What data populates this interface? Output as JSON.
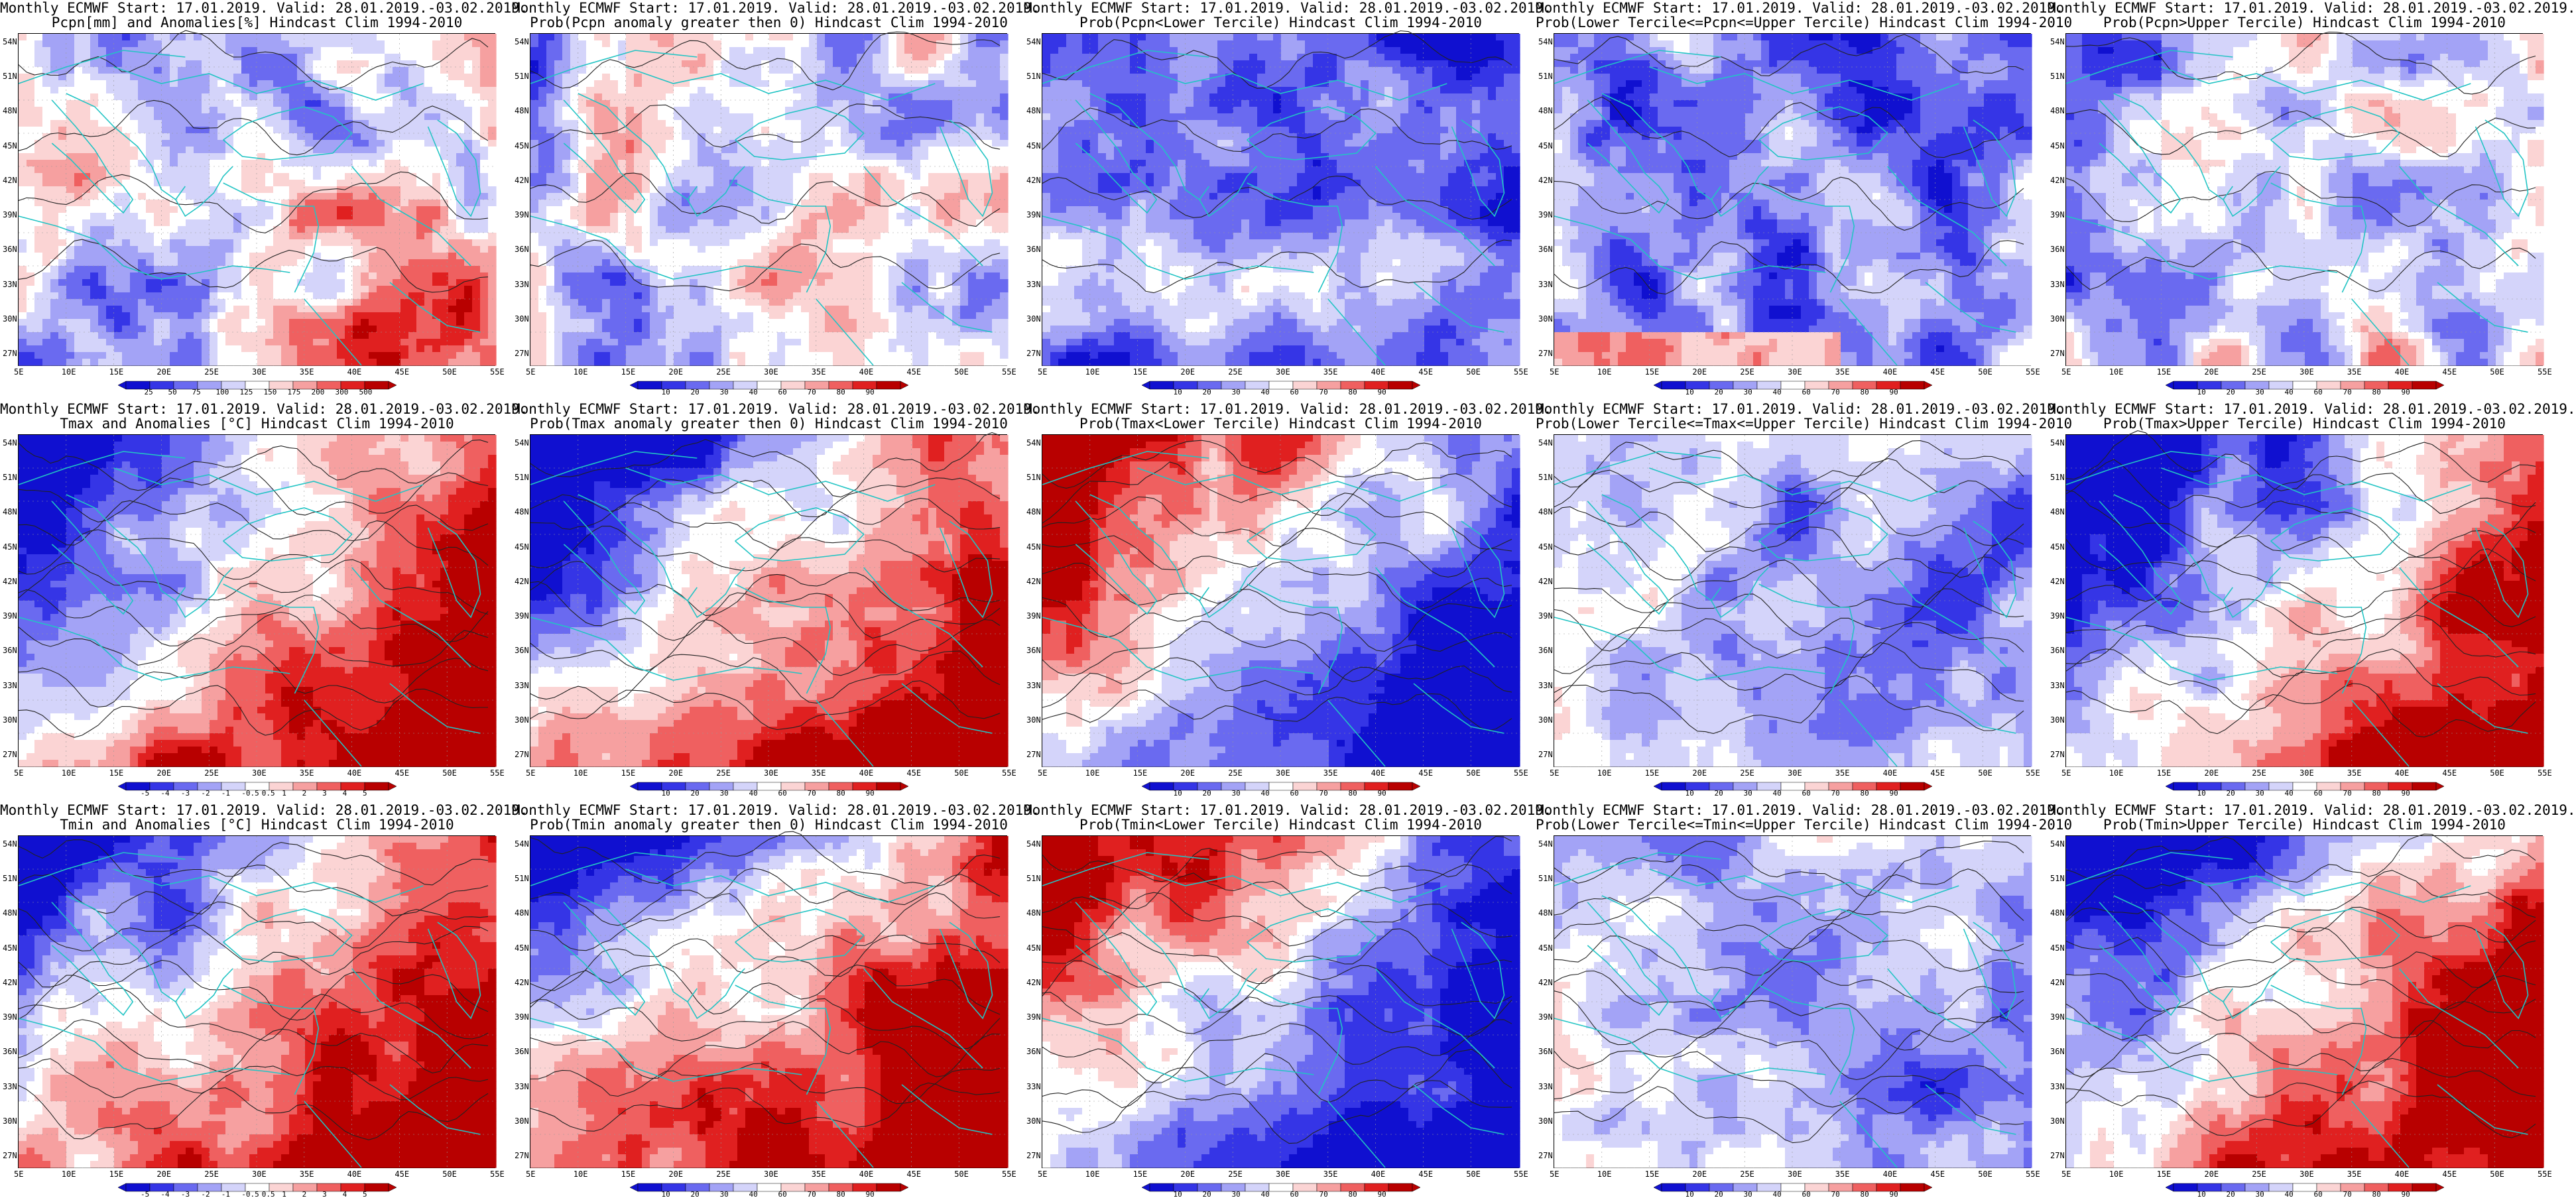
{
  "panels": [
    {
      "title1": "Monthly ECMWF Start: 17.01.2019. Valid: 28.01.2019.-03.02.2019.",
      "title2": "Pcpn[mm] and Anomalies[%]",
      "title3": "Hindcast Clim 1994-2010",
      "variable": "pcpn",
      "mode": "anomaly",
      "palette": "precip",
      "colorbar": [
        "25",
        "50",
        "75",
        "100",
        "125",
        "150",
        "175",
        "200",
        "300",
        "500"
      ]
    },
    {
      "title1": "Monthly ECMWF Start: 17.01.2019. Valid: 28.01.2019.-03.02.2019.",
      "title2": "Prob(Pcpn anomaly greater then 0)",
      "title3": "Hindcast Clim 1994-2010",
      "variable": "pcpn",
      "mode": "prob_gt0",
      "palette": "prob",
      "colorbar": [
        "10",
        "20",
        "30",
        "40",
        "60",
        "70",
        "80",
        "90"
      ]
    },
    {
      "title1": "Monthly ECMWF Start: 17.01.2019. Valid: 28.01.2019.-03.02.2019.",
      "title2": "Prob(Pcpn<Lower Tercile)",
      "title3": "Hindcast Clim 1994-2010",
      "variable": "pcpn",
      "mode": "lower",
      "palette": "prob",
      "colorbar": [
        "10",
        "20",
        "30",
        "40",
        "60",
        "70",
        "80",
        "90"
      ]
    },
    {
      "title1": "Monthly ECMWF Start: 17.01.2019. Valid: 28.01.2019.-03.02.2019.",
      "title2": "Prob(Lower Tercile<=Pcpn<=Upper Tercile)",
      "title3": "Hindcast Clim 1994-2010",
      "variable": "pcpn",
      "mode": "middle",
      "palette": "prob",
      "colorbar": [
        "10",
        "20",
        "30",
        "40",
        "60",
        "70",
        "80",
        "90"
      ]
    },
    {
      "title1": "Monthly ECMWF Start: 17.01.2019. Valid: 28.01.2019.-03.02.2019.",
      "title2": "Prob(Pcpn>Upper Tercile)",
      "title3": "Hindcast Clim 1994-2010",
      "variable": "pcpn",
      "mode": "upper",
      "palette": "prob",
      "colorbar": [
        "10",
        "20",
        "30",
        "40",
        "60",
        "70",
        "80",
        "90"
      ]
    },
    {
      "title1": "Monthly ECMWF Start: 17.01.2019. Valid: 28.01.2019.-03.02.2019.",
      "title2": "Tmax and Anomalies [°C]",
      "title3": "Hindcast Clim 1994-2010",
      "variable": "tmax",
      "mode": "anomaly",
      "palette": "temp",
      "colorbar": [
        "-5",
        "-4",
        "-3",
        "-2",
        "-1",
        "-0.5",
        "0.5",
        "1",
        "2",
        "3",
        "4",
        "5"
      ]
    },
    {
      "title1": "Monthly ECMWF Start: 17.01.2019. Valid: 28.01.2019.-03.02.2019.",
      "title2": "Prob(Tmax anomaly greater then 0)",
      "title3": "Hindcast Clim 1994-2010",
      "variable": "tmax",
      "mode": "prob_gt0",
      "palette": "prob",
      "colorbar": [
        "10",
        "20",
        "30",
        "40",
        "60",
        "70",
        "80",
        "90"
      ]
    },
    {
      "title1": "Monthly ECMWF Start: 17.01.2019. Valid: 28.01.2019.-03.02.2019.",
      "title2": "Prob(Tmax<Lower Tercile)",
      "title3": "Hindcast Clim 1994-2010",
      "variable": "tmax",
      "mode": "lower",
      "palette": "prob",
      "colorbar": [
        "10",
        "20",
        "30",
        "40",
        "60",
        "70",
        "80",
        "90"
      ]
    },
    {
      "title1": "Monthly ECMWF Start: 17.01.2019. Valid: 28.01.2019.-03.02.2019.",
      "title2": "Prob(Lower Tercile<=Tmax<=Upper Tercile)",
      "title3": "Hindcast Clim 1994-2010",
      "variable": "tmax",
      "mode": "middle",
      "palette": "prob",
      "colorbar": [
        "10",
        "20",
        "30",
        "40",
        "60",
        "70",
        "80",
        "90"
      ]
    },
    {
      "title1": "Monthly ECMWF Start: 17.01.2019. Valid: 28.01.2019.-03.02.2019.",
      "title2": "Prob(Tmax>Upper Tercile)",
      "title3": "Hindcast Clim 1994-2010",
      "variable": "tmax",
      "mode": "upper",
      "palette": "prob",
      "colorbar": [
        "10",
        "20",
        "30",
        "40",
        "60",
        "70",
        "80",
        "90"
      ]
    },
    {
      "title1": "Monthly ECMWF Start: 17.01.2019. Valid: 28.01.2019.-03.02.2019.",
      "title2": "Tmin and Anomalies [°C]",
      "title3": "Hindcast Clim 1994-2010",
      "variable": "tmin",
      "mode": "anomaly",
      "palette": "temp",
      "colorbar": [
        "-5",
        "-4",
        "-3",
        "-2",
        "-1",
        "-0.5",
        "0.5",
        "1",
        "2",
        "3",
        "4",
        "5"
      ]
    },
    {
      "title1": "Monthly ECMWF Start: 17.01.2019. Valid: 28.01.2019.-03.02.2019.",
      "title2": "Prob(Tmin anomaly greater then 0)",
      "title3": "Hindcast Clim 1994-2010",
      "variable": "tmin",
      "mode": "prob_gt0",
      "palette": "prob",
      "colorbar": [
        "10",
        "20",
        "30",
        "40",
        "60",
        "70",
        "80",
        "90"
      ]
    },
    {
      "title1": "Monthly ECMWF Start: 17.01.2019. Valid: 28.01.2019.-03.02.2019.",
      "title2": "Prob(Tmin<Lower Tercile)",
      "title3": "Hindcast Clim 1994-2010",
      "variable": "tmin",
      "mode": "lower",
      "palette": "prob",
      "colorbar": [
        "10",
        "20",
        "30",
        "40",
        "60",
        "70",
        "80",
        "90"
      ]
    },
    {
      "title1": "Monthly ECMWF Start: 17.01.2019. Valid: 28.01.2019.-03.02.2019.",
      "title2": "Prob(Lower Tercile<=Tmin<=Upper Tercile)",
      "title3": "Hindcast Clim 1994-2010",
      "variable": "tmin",
      "mode": "middle",
      "palette": "prob",
      "colorbar": [
        "10",
        "20",
        "30",
        "40",
        "60",
        "70",
        "80",
        "90"
      ]
    },
    {
      "title1": "Monthly ECMWF Start: 17.01.2019. Valid: 28.01.2019.-03.02.2019.",
      "title2": "Prob(Tmin>Upper Tercile)",
      "title3": "Hindcast Clim 1994-2010",
      "variable": "tmin",
      "mode": "upper",
      "palette": "prob",
      "colorbar": [
        "10",
        "20",
        "30",
        "40",
        "60",
        "70",
        "80",
        "90"
      ]
    }
  ],
  "lat_labels": [
    "54N",
    "51N",
    "48N",
    "45N",
    "42N",
    "39N",
    "36N",
    "33N",
    "30N",
    "27N"
  ],
  "lon_labels": [
    "5E",
    "10E",
    "15E",
    "20E",
    "25E",
    "30E",
    "35E",
    "40E",
    "45E",
    "50E",
    "55E"
  ],
  "colors": {
    "coastline": "#22c4c4",
    "contour": "#222222",
    "prob_palette": [
      "#1010d0",
      "#3535e6",
      "#6a6af0",
      "#a3a3f6",
      "#d4d4fa",
      "#ffffff",
      "#fbd4d4",
      "#f6a0a0",
      "#ef6060",
      "#e02020",
      "#b80000"
    ],
    "temp_palette": [
      "#1010d0",
      "#3535e6",
      "#6a6af0",
      "#a3a3f6",
      "#d4d4fa",
      "#ffffff",
      "#fbd4d4",
      "#f6a0a0",
      "#ef6060",
      "#e02020",
      "#b80000"
    ],
    "precip_palette": [
      "#b80000",
      "#e02020",
      "#ef6060",
      "#f6a0a0",
      "#fbd4d4",
      "#ffffff",
      "#d4d4fa",
      "#a3a3f6",
      "#6a6af0",
      "#3535e6"
    ]
  }
}
